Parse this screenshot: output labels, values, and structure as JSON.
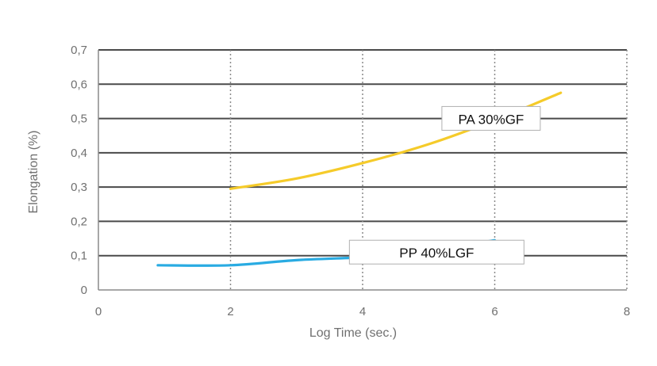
{
  "chart_data": {
    "type": "line",
    "title": "",
    "xlabel": "Log Time (sec.)",
    "ylabel": "Elongation (%)",
    "xlim": [
      0,
      8
    ],
    "ylim": [
      0,
      0.7
    ],
    "x_ticks": [
      {
        "value": 0,
        "label": "0"
      },
      {
        "value": 2,
        "label": "2"
      },
      {
        "value": 4,
        "label": "4"
      },
      {
        "value": 6,
        "label": "6"
      },
      {
        "value": 8,
        "label": "8"
      }
    ],
    "y_ticks": [
      {
        "value": 0,
        "label": "0"
      },
      {
        "value": 0.1,
        "label": "0,1"
      },
      {
        "value": 0.2,
        "label": "0,2"
      },
      {
        "value": 0.3,
        "label": "0,3"
      },
      {
        "value": 0.4,
        "label": "0,4"
      },
      {
        "value": 0.5,
        "label": "0,5"
      },
      {
        "value": 0.6,
        "label": "0,6"
      },
      {
        "value": 0.7,
        "label": "0,7"
      }
    ],
    "grid": {
      "horizontal": "solid",
      "vertical": "dotted"
    },
    "series": [
      {
        "name": "PA 30%GF",
        "color": "#f5cb2a",
        "label_box": {
          "x": 5.2,
          "y": 0.535
        },
        "points": [
          {
            "x": 2.0,
            "y": 0.295
          },
          {
            "x": 3.0,
            "y": 0.325
          },
          {
            "x": 4.0,
            "y": 0.37
          },
          {
            "x": 5.0,
            "y": 0.425
          },
          {
            "x": 6.0,
            "y": 0.495
          },
          {
            "x": 7.0,
            "y": 0.575
          }
        ]
      },
      {
        "name": "PP 40%LGF",
        "color": "#29abe2",
        "label_box": {
          "x": 3.8,
          "y": 0.145
        },
        "points": [
          {
            "x": 0.9,
            "y": 0.072
          },
          {
            "x": 2.0,
            "y": 0.072
          },
          {
            "x": 3.0,
            "y": 0.087
          },
          {
            "x": 4.0,
            "y": 0.095
          },
          {
            "x": 4.6,
            "y": 0.103
          },
          {
            "x": 5.2,
            "y": 0.115
          },
          {
            "x": 5.7,
            "y": 0.135
          },
          {
            "x": 6.0,
            "y": 0.145
          }
        ]
      }
    ]
  }
}
